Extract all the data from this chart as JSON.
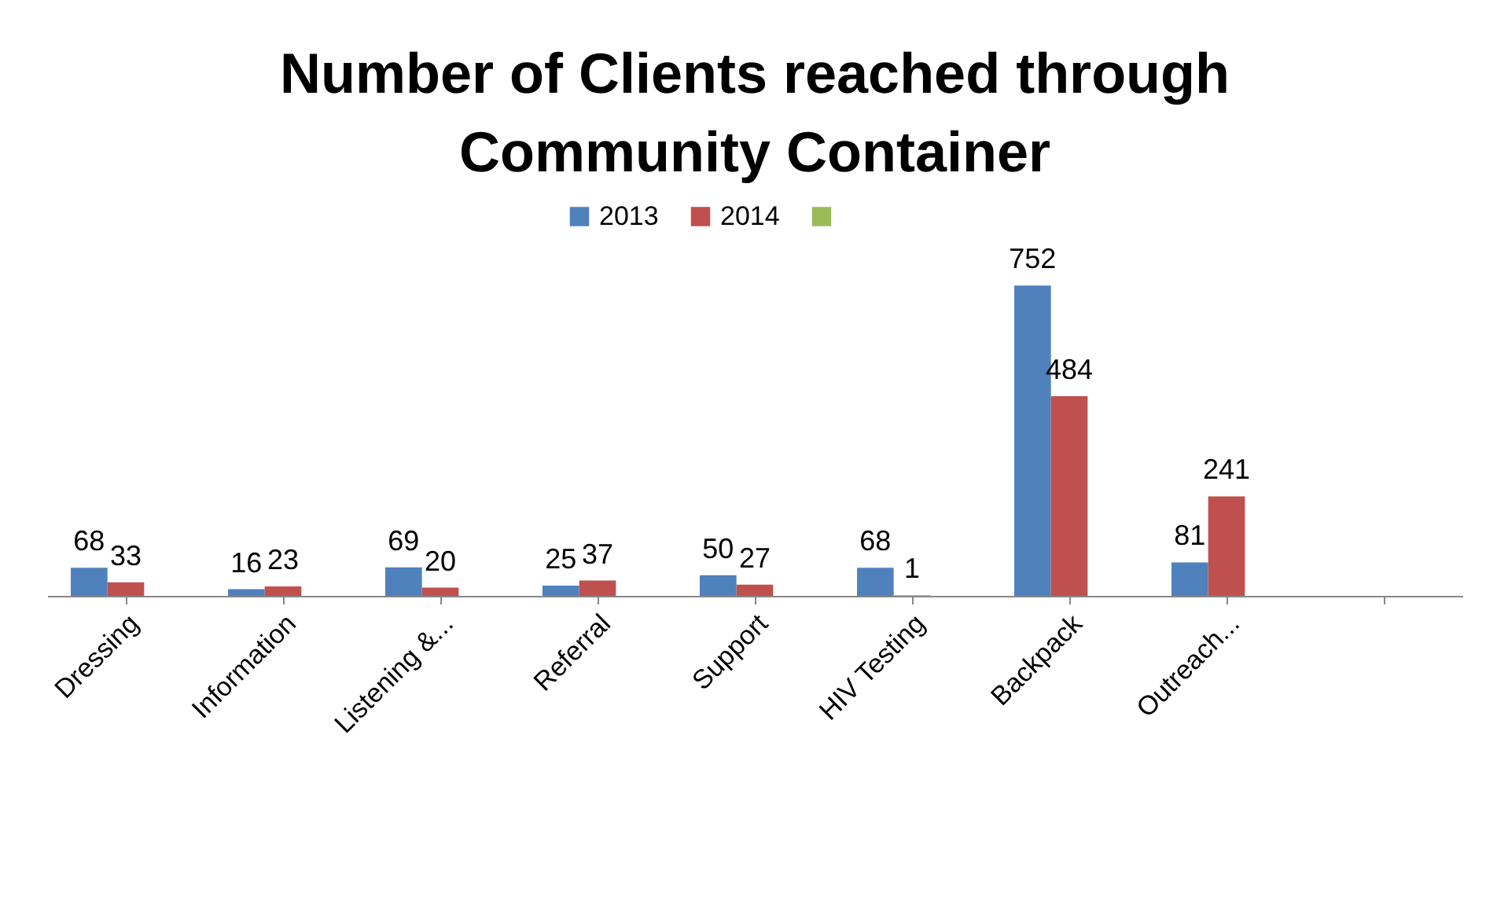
{
  "chart_data": {
    "type": "bar",
    "title": "Number of Clients reached through Community Container",
    "categories": [
      "Dressing",
      "Information",
      "Listening &...",
      "Referral",
      "Support",
      "HIV Testing",
      "Backpack",
      "Outreach...",
      null
    ],
    "series": [
      {
        "name": "2013",
        "color": "#4f81bd",
        "values": [
          68,
          16,
          69,
          25,
          50,
          68,
          752,
          81,
          null
        ]
      },
      {
        "name": "2014",
        "color": "#c0504d",
        "values": [
          33,
          23,
          20,
          37,
          27,
          1,
          484,
          241,
          null
        ]
      },
      {
        "color": "#9bbb59",
        "values": [
          null,
          null,
          null,
          null,
          null,
          null,
          null,
          null,
          null
        ]
      }
    ],
    "data_labels": true,
    "legend": "top",
    "grid": false
  }
}
